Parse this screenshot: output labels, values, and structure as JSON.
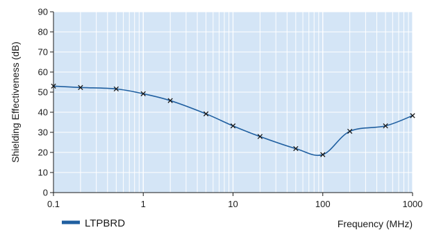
{
  "chart_data": {
    "type": "line",
    "x_scale": "log",
    "xlim": [
      0.1,
      1000
    ],
    "ylim": [
      0,
      90
    ],
    "x_ticks": [
      0.1,
      1,
      10,
      100,
      1000
    ],
    "x_tick_labels": [
      "0.1",
      "1",
      "10",
      "100",
      "1000"
    ],
    "y_ticks": [
      0,
      10,
      20,
      30,
      40,
      50,
      60,
      70,
      80,
      90
    ],
    "y_tick_labels": [
      "0",
      "10",
      "20",
      "30",
      "40",
      "50",
      "60",
      "70",
      "80",
      "90"
    ],
    "xlabel": "Frequency (MHz)",
    "ylabel": "Shielding Effectiveness (dB)",
    "grid": true,
    "legend_position": "bottom-left",
    "series": [
      {
        "name": "LTPBRD",
        "color": "#1f5fa0",
        "marker": "x",
        "x": [
          0.1,
          0.2,
          0.5,
          1,
          2,
          5,
          10,
          20,
          50,
          100,
          200,
          500,
          1000
        ],
        "y": [
          53,
          52.3,
          51.6,
          49.2,
          45.8,
          39.2,
          33.2,
          27.9,
          21.9,
          18.9,
          30.5,
          33.2,
          38.3
        ]
      }
    ],
    "colors": {
      "plot_background": "#d4e5f6",
      "grid": "#ffffff",
      "axis": "#1a1a1a"
    }
  }
}
